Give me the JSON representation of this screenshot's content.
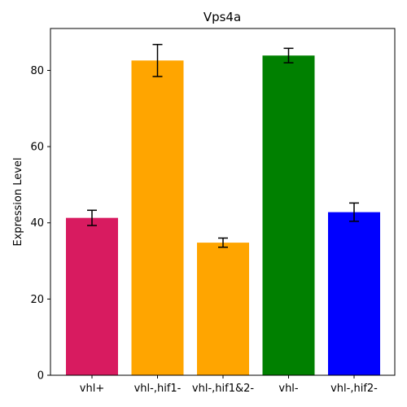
{
  "chart_data": {
    "type": "bar",
    "title": "Vps4a",
    "xlabel": "",
    "ylabel": "Expression Level",
    "ylim": [
      0,
      91
    ],
    "yticks": [
      0,
      20,
      40,
      60,
      80
    ],
    "grid": false,
    "categories": [
      "vhl+",
      "vhl-,hif1-",
      "vhl-,hif1&2-",
      "vhl-",
      "vhl-,hif2-"
    ],
    "values": [
      41.3,
      82.6,
      34.8,
      83.9,
      42.8
    ],
    "errors": [
      2.0,
      4.2,
      1.2,
      1.9,
      2.4
    ],
    "colors": [
      "#d81b60",
      "#ffa500",
      "#ffa500",
      "#008000",
      "#0000ff"
    ]
  }
}
